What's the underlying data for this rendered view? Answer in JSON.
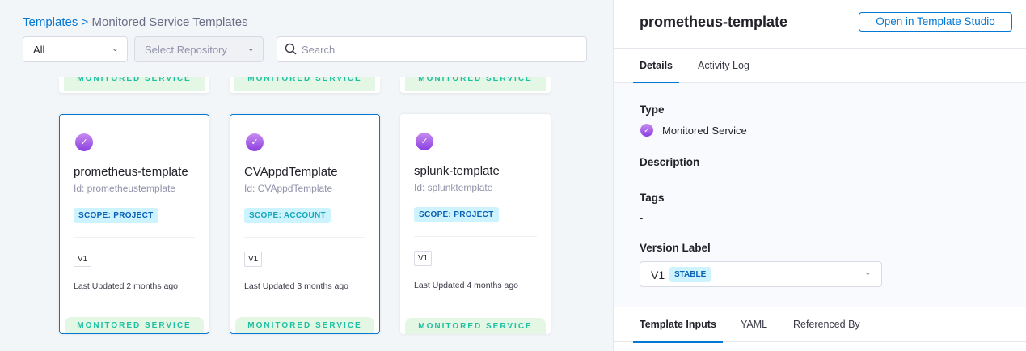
{
  "breadcrumb": {
    "root": "Templates",
    "sep": ">",
    "current": "Monitored Service Templates"
  },
  "filters": {
    "scope": "All",
    "repository": "Select Repository",
    "search_placeholder": "Search"
  },
  "ghost_label": "MONITORED SERVICE",
  "cards": [
    {
      "name": "prometheus-template",
      "id": "Id: prometheustemplate",
      "scope": "SCOPE: PROJECT",
      "scope_color": "#0b5fb5",
      "version": "V1",
      "updated": "Last Updated  2 months ago",
      "type": "MONITORED SERVICE",
      "selected": true
    },
    {
      "name": "CVAppdTemplate",
      "id": "Id: CVAppdTemplate",
      "scope": "SCOPE: ACCOUNT",
      "scope_color": "#13a6b7",
      "version": "V1",
      "updated": "Last Updated  3 months ago",
      "type": "MONITORED SERVICE",
      "selected": true
    },
    {
      "name": "splunk-template",
      "id": "Id: splunktemplate",
      "scope": "SCOPE: PROJECT",
      "scope_color": "#0b5fb5",
      "version": "V1",
      "updated": "Last Updated  4 months ago",
      "type": "MONITORED SERVICE",
      "selected": false
    }
  ],
  "detail": {
    "title": "prometheus-template",
    "open_button": "Open in Template Studio",
    "tabs": [
      "Details",
      "Activity Log"
    ],
    "type_label": "Type",
    "type_value": "Monitored Service",
    "description_label": "Description",
    "tags_label": "Tags",
    "tags_value": "-",
    "version_label": "Version Label",
    "version_value": "V1",
    "version_badge": "STABLE",
    "bottom_tabs": [
      "Template Inputs",
      "YAML",
      "Referenced By"
    ]
  }
}
